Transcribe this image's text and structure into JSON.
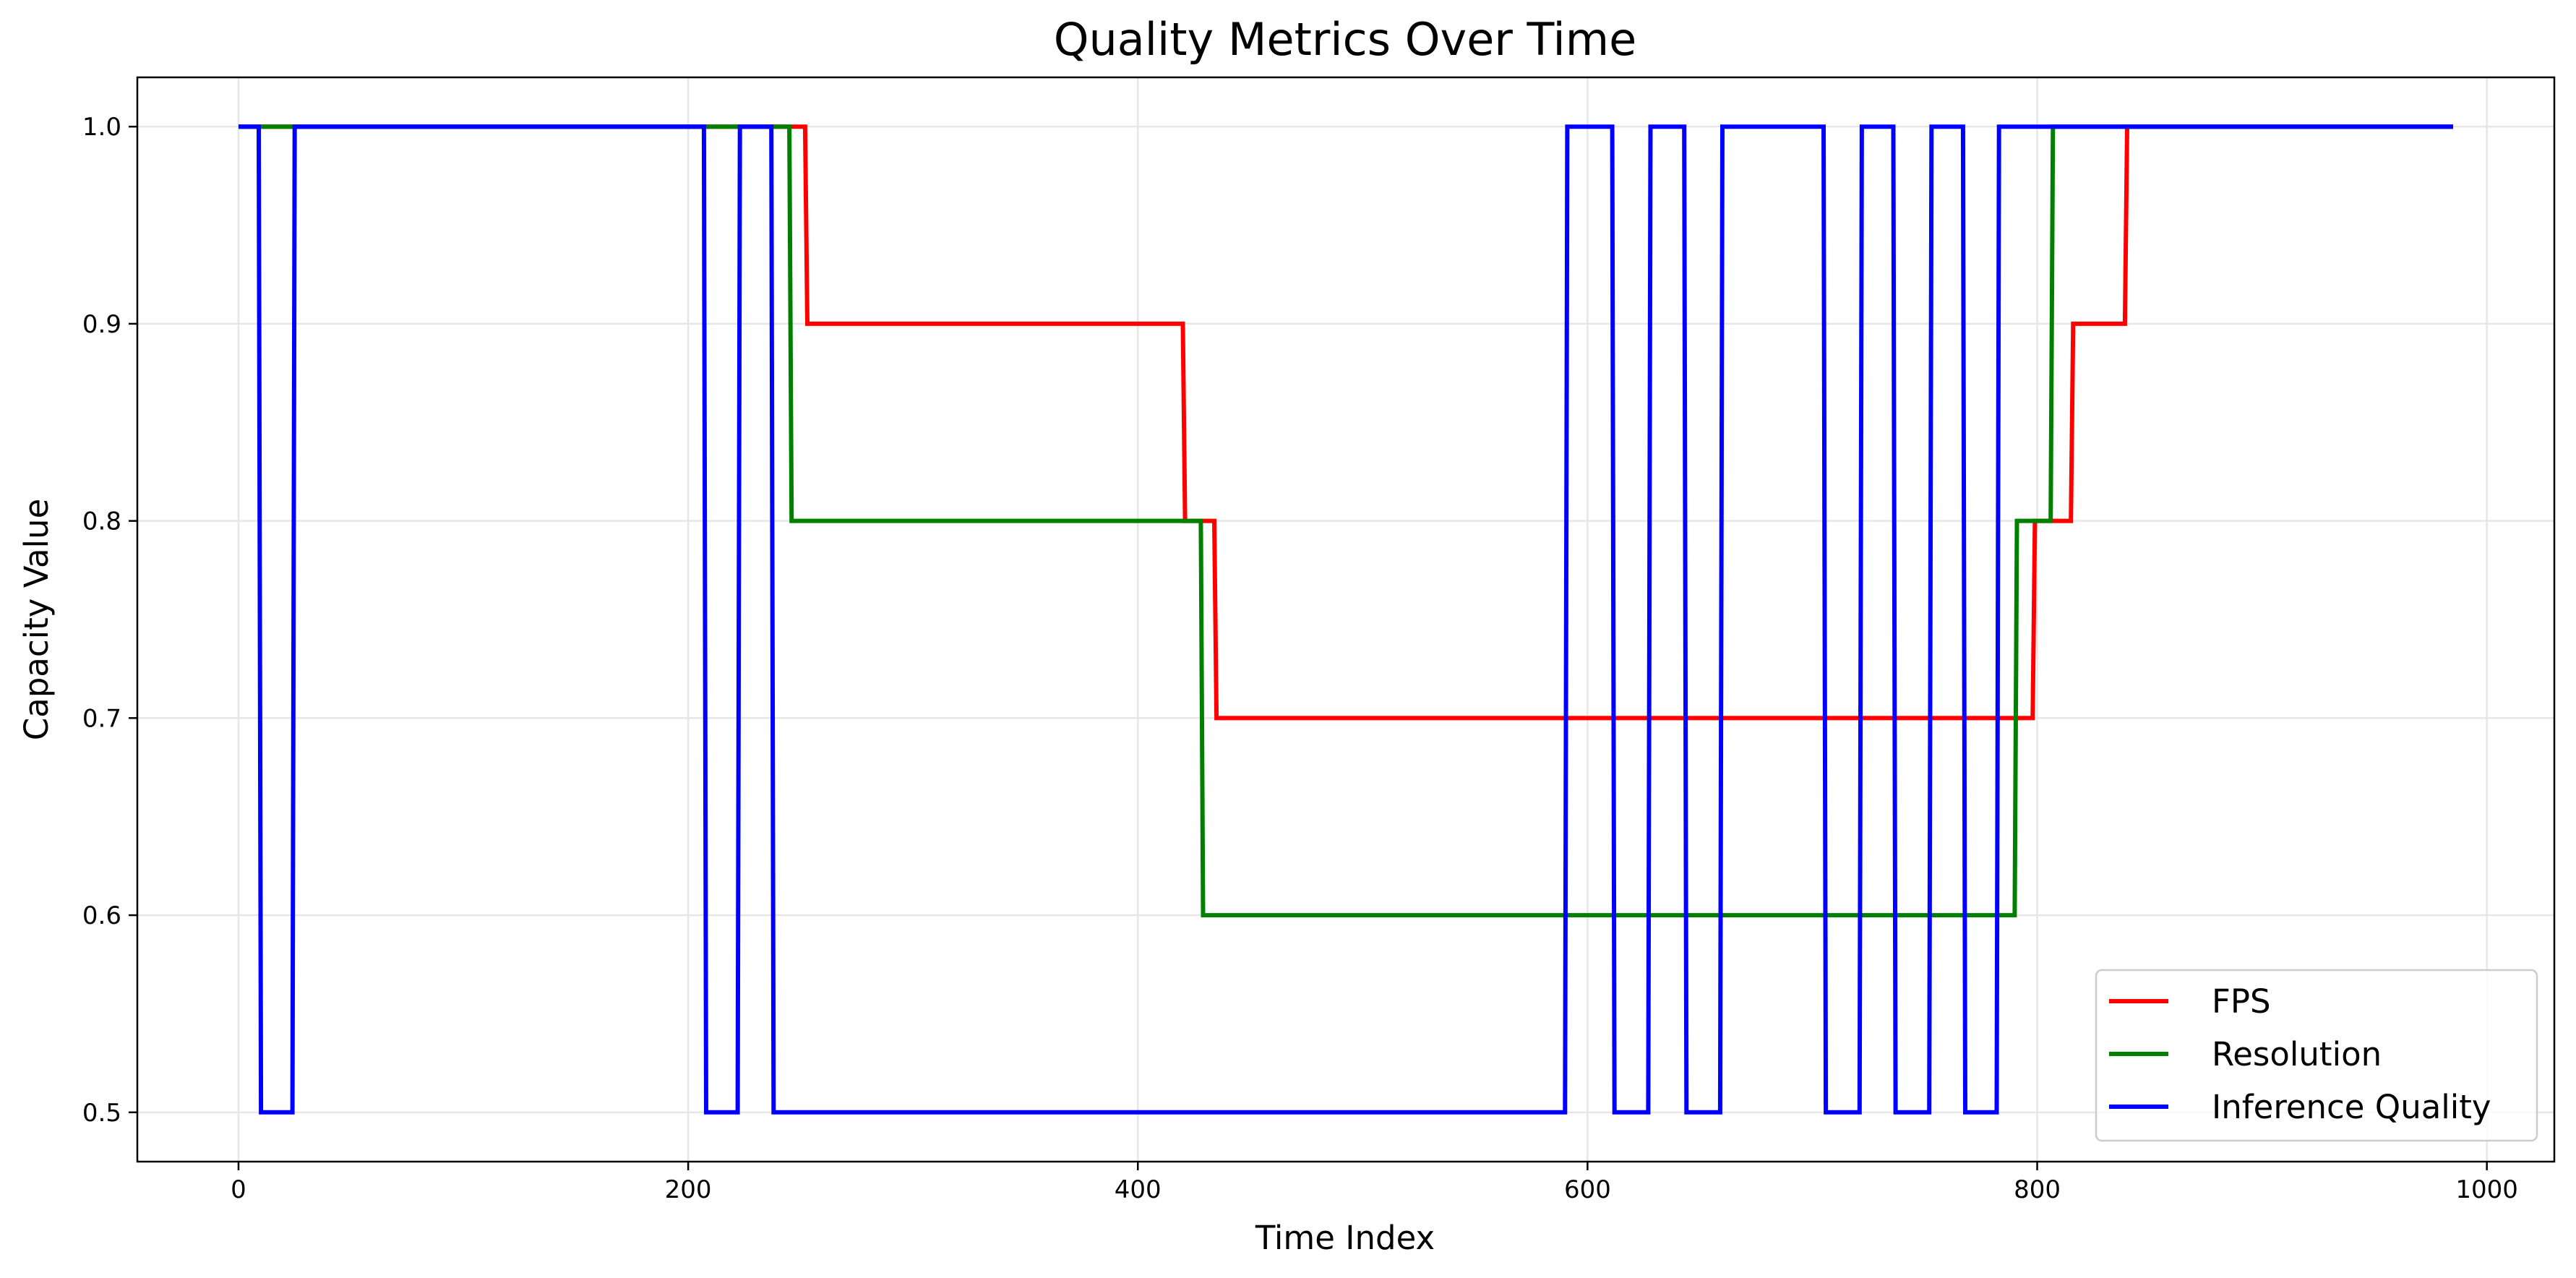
{
  "chart_data": {
    "type": "line",
    "step": true,
    "title": "Quality Metrics Over Time",
    "xlabel": "Time Index",
    "ylabel": "Capacity Value",
    "xlim": [
      -45,
      1030
    ],
    "ylim": [
      0.475,
      1.025
    ],
    "xticks": [
      0,
      200,
      400,
      600,
      800,
      1000
    ],
    "xtick_labels": [
      "0",
      "200",
      "400",
      "600",
      "800",
      "1000"
    ],
    "yticks": [
      0.5,
      0.6,
      0.7,
      0.8,
      0.9,
      1.0
    ],
    "ytick_labels": [
      "0.5",
      "0.6",
      "0.7",
      "0.8",
      "0.9",
      "1.0"
    ],
    "grid": true,
    "legend_position": "lower-right",
    "series": [
      {
        "name": "FPS",
        "color": "#ff0000",
        "x": [
          0,
          252,
          253,
          420,
          421,
          434,
          435,
          798,
          799,
          815,
          816,
          839,
          840,
          985
        ],
        "y": [
          1.0,
          1.0,
          0.9,
          0.9,
          0.8,
          0.8,
          0.7,
          0.7,
          0.8,
          0.8,
          0.9,
          0.9,
          1.0,
          1.0
        ]
      },
      {
        "name": "Resolution",
        "color": "#008000",
        "x": [
          0,
          245,
          246,
          428,
          429,
          790,
          791,
          806,
          807,
          985
        ],
        "y": [
          1.0,
          1.0,
          0.8,
          0.8,
          0.6,
          0.6,
          0.8,
          0.8,
          1.0,
          1.0
        ]
      },
      {
        "name": "Inference Quality",
        "color": "#0000ff",
        "x": [
          0,
          9,
          10,
          24,
          25,
          207,
          208,
          222,
          223,
          237,
          238,
          590,
          591,
          611,
          612,
          627,
          628,
          643,
          644,
          659,
          660,
          705,
          706,
          721,
          722,
          736,
          737,
          752,
          753,
          767,
          768,
          782,
          783,
          985
        ],
        "y": [
          1.0,
          1.0,
          0.5,
          0.5,
          1.0,
          1.0,
          0.5,
          0.5,
          1.0,
          1.0,
          0.5,
          0.5,
          1.0,
          1.0,
          0.5,
          0.5,
          1.0,
          1.0,
          0.5,
          0.5,
          1.0,
          1.0,
          0.5,
          0.5,
          1.0,
          1.0,
          0.5,
          0.5,
          1.0,
          1.0,
          0.5,
          0.5,
          1.0,
          1.0
        ]
      }
    ]
  }
}
